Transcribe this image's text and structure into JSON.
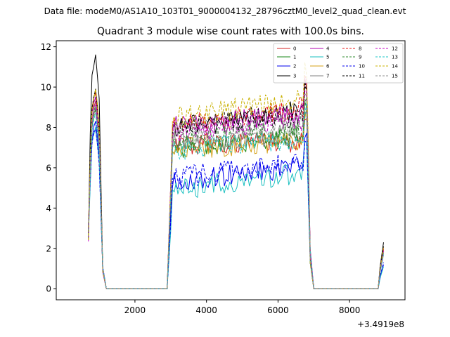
{
  "suptitle": "Data file: modeM0/AS1A10_103T01_9000004132_28796cztM0_level2_quad_clean.evt",
  "chart_data": {
    "type": "line",
    "title": "Quadrant 3 module wise count rates with 100.0s bins.",
    "xlabel": "",
    "ylabel": "",
    "x_offset_label": "+3.4919e8",
    "xlim": [
      -200,
      9550
    ],
    "ylim": [
      -0.55,
      12.3
    ],
    "x_ticks": [
      2000,
      4000,
      6000,
      8000
    ],
    "x_tick_labels": [
      "2000",
      "4000",
      "6000",
      "8000"
    ],
    "y_ticks": [
      0,
      2,
      4,
      6,
      8,
      10,
      12
    ],
    "y_tick_labels": [
      "0",
      "2",
      "4",
      "6",
      "8",
      "10",
      "12"
    ],
    "grid": false,
    "legend_position": "top-right",
    "legend_columns": 4,
    "segments": [
      {
        "x_start": 700,
        "x_end": 1100,
        "step": 50
      },
      {
        "x_start": 1200,
        "x_end": 2900,
        "step": 100
      },
      {
        "x_start": 3000,
        "x_end": 6900,
        "step": 50
      },
      {
        "x_start": 7000,
        "x_end": 8800,
        "step": 100
      },
      {
        "x_start": 8850,
        "x_end": 8950,
        "step": 50
      }
    ],
    "series": [
      {
        "name": "0",
        "color": "#d62020",
        "dash": "solid",
        "peak": 9.3,
        "plateau_start": 7.2,
        "plateau_end": 7.3,
        "end": 1.9
      },
      {
        "name": "1",
        "color": "#1a8a1a",
        "dash": "solid",
        "peak": 9.0,
        "plateau_start": 7.0,
        "plateau_end": 7.6,
        "end": 1.8
      },
      {
        "name": "2",
        "color": "#0000ee",
        "dash": "solid",
        "peak": 8.3,
        "plateau_start": 5.2,
        "plateau_end": 6.1,
        "end": 1.2
      },
      {
        "name": "3",
        "color": "#000000",
        "dash": "solid",
        "peak": 11.6,
        "plateau_start": 7.9,
        "plateau_end": 8.9,
        "end": 2.3
      },
      {
        "name": "4",
        "color": "#b000b0",
        "dash": "solid",
        "peak": 9.5,
        "plateau_start": 8.0,
        "plateau_end": 8.7,
        "end": 2.0
      },
      {
        "name": "5",
        "color": "#17bfbf",
        "dash": "solid",
        "peak": 8.0,
        "plateau_start": 4.9,
        "plateau_end": 5.8,
        "end": 1.1
      },
      {
        "name": "6",
        "color": "#d4a017",
        "dash": "solid",
        "peak": 9.8,
        "plateau_start": 7.0,
        "plateau_end": 7.2,
        "end": 1.9
      },
      {
        "name": "7",
        "color": "#808080",
        "dash": "solid",
        "peak": 9.0,
        "plateau_start": 7.2,
        "plateau_end": 7.7,
        "end": 1.7
      },
      {
        "name": "8",
        "color": "#e81010",
        "dash": "dashed",
        "peak": 9.7,
        "plateau_start": 8.1,
        "plateau_end": 9.0,
        "end": 2.0
      },
      {
        "name": "9",
        "color": "#2e8b2e",
        "dash": "dashed",
        "peak": 8.9,
        "plateau_start": 7.3,
        "plateau_end": 7.9,
        "end": 1.8
      },
      {
        "name": "10",
        "color": "#0000ee",
        "dash": "dashed",
        "peak": 7.9,
        "plateau_start": 5.5,
        "plateau_end": 6.3,
        "end": 1.3
      },
      {
        "name": "11",
        "color": "#000000",
        "dash": "dashed",
        "peak": 9.9,
        "plateau_start": 8.0,
        "plateau_end": 8.6,
        "end": 2.1
      },
      {
        "name": "12",
        "color": "#c400c4",
        "dash": "dashed",
        "peak": 9.1,
        "plateau_start": 7.7,
        "plateau_end": 8.4,
        "end": 1.9
      },
      {
        "name": "13",
        "color": "#1ac6c6",
        "dash": "dashed",
        "peak": 8.7,
        "plateau_start": 6.9,
        "plateau_end": 7.5,
        "end": 1.7
      },
      {
        "name": "14",
        "color": "#c8b000",
        "dash": "dashed",
        "peak": 9.9,
        "plateau_start": 8.4,
        "plateau_end": 9.5,
        "end": 2.1
      },
      {
        "name": "15",
        "color": "#909090",
        "dash": "dashed",
        "peak": 9.2,
        "plateau_start": 7.7,
        "plateau_end": 8.2,
        "end": 1.8
      }
    ]
  }
}
